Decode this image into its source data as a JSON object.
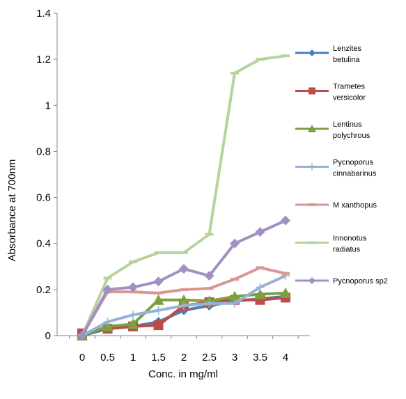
{
  "chart_data": {
    "type": "line",
    "title": "",
    "xlabel": "Conc. in mg/ml",
    "ylabel": "Absorbance at 700nm",
    "ylim": [
      0,
      1.4
    ],
    "yticks": [
      "0",
      "0.2",
      "0.4",
      "0.6",
      "0.8",
      "1",
      "1.2",
      "1.4"
    ],
    "x": [
      "0",
      "0.5",
      "1",
      "1.5",
      "2",
      "2.5",
      "3",
      "3.5",
      "4"
    ],
    "grid": false,
    "legend_position": "right",
    "series": [
      {
        "name": [
          "Lenzites",
          "betulina"
        ],
        "color": "#4a7ebb",
        "marker": "diamond",
        "values": [
          0.0,
          0.03,
          0.04,
          0.06,
          0.11,
          0.13,
          0.15,
          0.16,
          0.17
        ]
      },
      {
        "name": [
          "Trametes",
          "versicolor"
        ],
        "color": "#be4b48",
        "marker": "square",
        "values": [
          0.01,
          0.03,
          0.04,
          0.045,
          0.13,
          0.145,
          0.155,
          0.155,
          0.165
        ]
      },
      {
        "name": [
          "Lentinus",
          "polychrous"
        ],
        "color": "#7aa03f",
        "marker": "triangle",
        "values": [
          0.0,
          0.04,
          0.05,
          0.155,
          0.155,
          0.15,
          0.17,
          0.18,
          0.185
        ]
      },
      {
        "name": [
          "Pycnoporus",
          "cinnabarinus"
        ],
        "color": "#95b3d7",
        "marker": "plus",
        "values": [
          0.0,
          0.06,
          0.09,
          0.11,
          0.13,
          0.14,
          0.14,
          0.21,
          0.26
        ]
      },
      {
        "name": [
          "M xanthopus"
        ],
        "color": "#d99694",
        "marker": "dash",
        "values": [
          0.0,
          0.19,
          0.19,
          0.185,
          0.2,
          0.205,
          0.245,
          0.295,
          0.27
        ]
      },
      {
        "name": [
          "Innonotus",
          "radiatus"
        ],
        "color": "#b7d39c",
        "marker": "dash",
        "values": [
          0.0,
          0.25,
          0.32,
          0.36,
          0.36,
          0.44,
          1.14,
          1.2,
          1.215
        ]
      },
      {
        "name": [
          "Pycnoporus sp2"
        ],
        "color": "#a190c1",
        "marker": "diamond",
        "values": [
          0.0,
          0.2,
          0.21,
          0.235,
          0.29,
          0.26,
          0.4,
          0.45,
          0.5
        ]
      }
    ]
  }
}
